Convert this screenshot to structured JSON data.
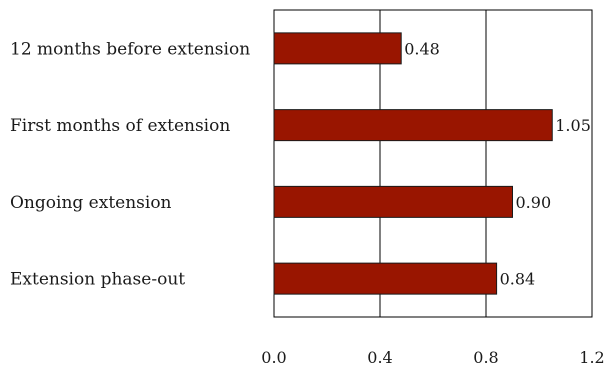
{
  "chart_data": {
    "type": "bar",
    "orientation": "horizontal",
    "categories": [
      "12 months before extension",
      "First months of extension",
      "Ongoing extension",
      "Extension phase-out"
    ],
    "values": [
      0.48,
      1.05,
      0.9,
      0.84
    ],
    "value_labels": [
      "0.48",
      "1.05",
      "0.90",
      "0.84"
    ],
    "x_ticks": [
      "0.0",
      "0.4",
      "0.8",
      "1.2"
    ],
    "xlim": [
      0,
      1.2
    ],
    "grid": true,
    "legend": "none",
    "title": "",
    "xlabel": "",
    "ylabel": "",
    "colors": {
      "bar_fill": "#991500",
      "bar_edge": "#1a1a1a",
      "grid": "#000000"
    }
  }
}
